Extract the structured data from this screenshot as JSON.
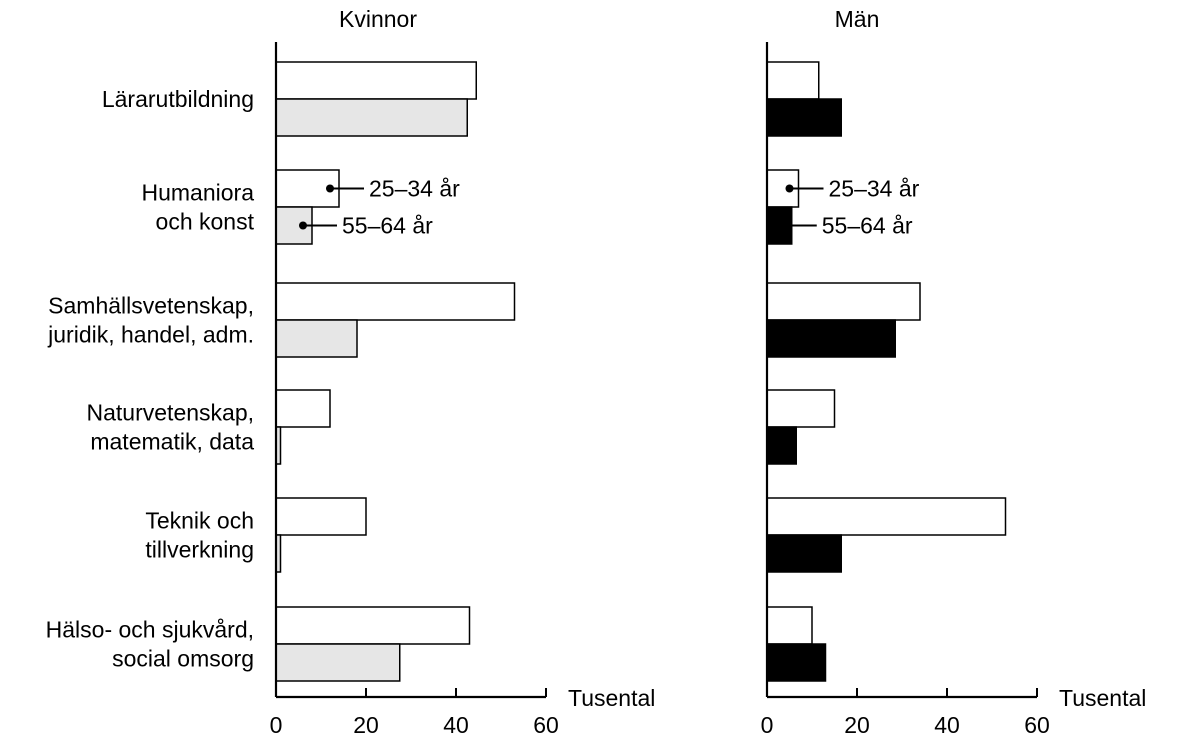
{
  "chart_data": {
    "type": "bar",
    "orientation": "horizontal",
    "categories": [
      [
        "Lärarutbildning"
      ],
      [
        "Humaniora",
        "och konst"
      ],
      [
        "Samhällsvetenskap,",
        "juridik, handel, adm."
      ],
      [
        "Naturvetenskap,",
        "matematik, data"
      ],
      [
        "Teknik och",
        "tillverkning"
      ],
      [
        "Hälso- och sjukvård,",
        "social omsorg"
      ]
    ],
    "xunit": "Tusental",
    "xlim": [
      0,
      60
    ],
    "xticks": [
      "0",
      "20",
      "40",
      "60"
    ],
    "grid": false,
    "panels": [
      {
        "title": "Kvinnor",
        "series": [
          {
            "name": "25–34 år",
            "values": [
              44.5,
              14,
              53,
              12,
              20,
              43
            ],
            "color": "#ffffff"
          },
          {
            "name": "55–64 år",
            "values": [
              42.5,
              8,
              18,
              1,
              1,
              27.5
            ],
            "color": "#e6e6e6"
          }
        ]
      },
      {
        "title": "Män",
        "series": [
          {
            "name": "25–34 år",
            "values": [
              11.5,
              7,
              34,
              15,
              53,
              10
            ],
            "color": "#ffffff"
          },
          {
            "name": "55–64 år",
            "values": [
              16.5,
              5.5,
              28.5,
              6.5,
              16.5,
              13
            ],
            "color": "#000000"
          }
        ]
      }
    ]
  }
}
